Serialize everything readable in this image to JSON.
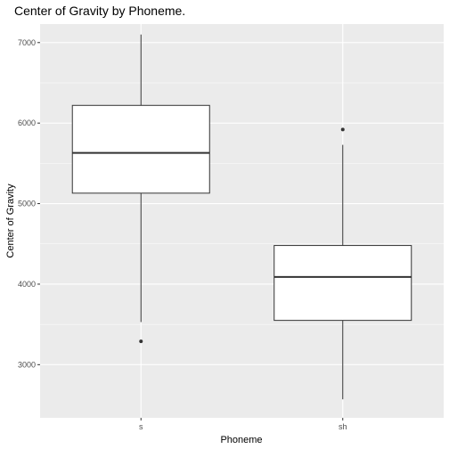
{
  "chart_data": {
    "type": "box",
    "title": "Center of Gravity by Phoneme.",
    "xlabel": "Phoneme",
    "ylabel": "Center of Gravity",
    "categories": [
      "s",
      "sh"
    ],
    "yticks": [
      3000,
      4000,
      5000,
      6000,
      7000
    ],
    "ylim": [
      2340,
      7230
    ],
    "grid": true,
    "boxes": [
      {
        "category": "s",
        "whisker_low": 3530,
        "q1": 5130,
        "median": 5630,
        "q3": 6220,
        "whisker_high": 7100,
        "outliers": [
          3290
        ]
      },
      {
        "category": "sh",
        "whisker_low": 2570,
        "q1": 3550,
        "median": 4090,
        "q3": 4480,
        "whisker_high": 5730,
        "outliers": [
          5920
        ]
      }
    ],
    "colors": {
      "panel": "#ebebeb",
      "grid_major": "#ffffff",
      "box_fill": "#ffffff",
      "box_line": "#333333"
    }
  }
}
